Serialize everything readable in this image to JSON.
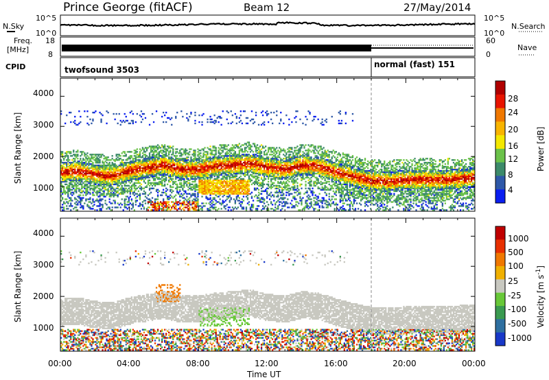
{
  "header": {
    "station": "Prince George (fitACF)",
    "beam": "Beam 12",
    "date": "27/May/2014"
  },
  "top_panels": {
    "nsky_label": "N.Sky",
    "nsearch_label": "N.Search",
    "freq_label_1": "Freq.",
    "freq_label_2": "[MHz]",
    "nave_label": "Nave",
    "cpid_label": "CPID",
    "noise_left_ticks": [
      "10^5",
      "10^0"
    ],
    "noise_right_ticks": [
      "10^5",
      "10^0"
    ],
    "freq_left_ticks": [
      "18",
      "8"
    ],
    "freq_right_ticks": [
      "60",
      "0"
    ],
    "cpid_segments": [
      {
        "name": "twofsound 3503",
        "start_hour": 0,
        "end_hour": 18
      },
      {
        "name": "normal (fast) 151",
        "start_hour": 18,
        "end_hour": 24
      }
    ]
  },
  "power_panel": {
    "ylabel": "Slant Range [km]",
    "yticks": [
      "4000",
      "3000",
      "2000",
      "1000"
    ],
    "colorbar_label": "Power [dB]",
    "colorbar_ticks": [
      "28",
      "24",
      "20",
      "16",
      "12",
      "8",
      "4"
    ],
    "colors": [
      "#0a1ef0",
      "#2e58a8",
      "#3c8a6a",
      "#6bc24a",
      "#f4e800",
      "#f8b400",
      "#f07800",
      "#e81400",
      "#b00000"
    ]
  },
  "velocity_panel": {
    "ylabel": "Slant Range [km]",
    "yticks": [
      "4000",
      "3000",
      "2000",
      "1000"
    ],
    "colorbar_label": "Velocity  [m s",
    "colorbar_label_sup": "-1",
    "colorbar_label_end": "]",
    "colorbar_ticks": [
      "1000",
      "500",
      "100",
      "25",
      "-25",
      "-100",
      "-500",
      "-1000"
    ],
    "colors": [
      "#1838c8",
      "#2e6fa0",
      "#3a9a50",
      "#68c838",
      "#c8c8c0",
      "#f0b000",
      "#f07800",
      "#e83000",
      "#c00000"
    ]
  },
  "xaxis": {
    "label": "Time UT",
    "ticks": [
      "00:00",
      "04:00",
      "08:00",
      "12:00",
      "16:00",
      "20:00",
      "00:00"
    ]
  },
  "chart_data": [
    {
      "type": "heatmap",
      "title": "Prince George (fitACF) Beam 12 27/May/2014",
      "xlabel": "Time UT",
      "ylabel": "Slant Range [km]",
      "xlim": [
        0,
        24
      ],
      "ylim": [
        180,
        4600
      ],
      "quantity": "Power [dB]",
      "colorbar_range": [
        0,
        30
      ],
      "band_center_km": [
        [
          0,
          1450
        ],
        [
          1,
          1500
        ],
        [
          2,
          1380
        ],
        [
          3,
          1330
        ],
        [
          4,
          1500
        ],
        [
          5,
          1600
        ],
        [
          6,
          1700
        ],
        [
          7,
          1550
        ],
        [
          8,
          1560
        ],
        [
          9,
          1650
        ],
        [
          10,
          1700
        ],
        [
          11,
          1760
        ],
        [
          12,
          1620
        ],
        [
          13,
          1550
        ],
        [
          14,
          1700
        ],
        [
          15,
          1650
        ],
        [
          16,
          1450
        ],
        [
          17,
          1300
        ],
        [
          18,
          1180
        ],
        [
          19,
          1150
        ],
        [
          20,
          1200
        ],
        [
          21,
          1220
        ],
        [
          22,
          1200
        ],
        [
          23,
          1230
        ],
        [
          24,
          1280
        ]
      ]
    },
    {
      "type": "heatmap",
      "title": "",
      "xlabel": "Time UT",
      "ylabel": "Slant Range [km]",
      "xlim": [
        0,
        24
      ],
      "ylim": [
        180,
        4600
      ],
      "quantity": "Velocity [m s-1]",
      "colorbar_range": [
        -1000,
        1000
      ]
    }
  ]
}
